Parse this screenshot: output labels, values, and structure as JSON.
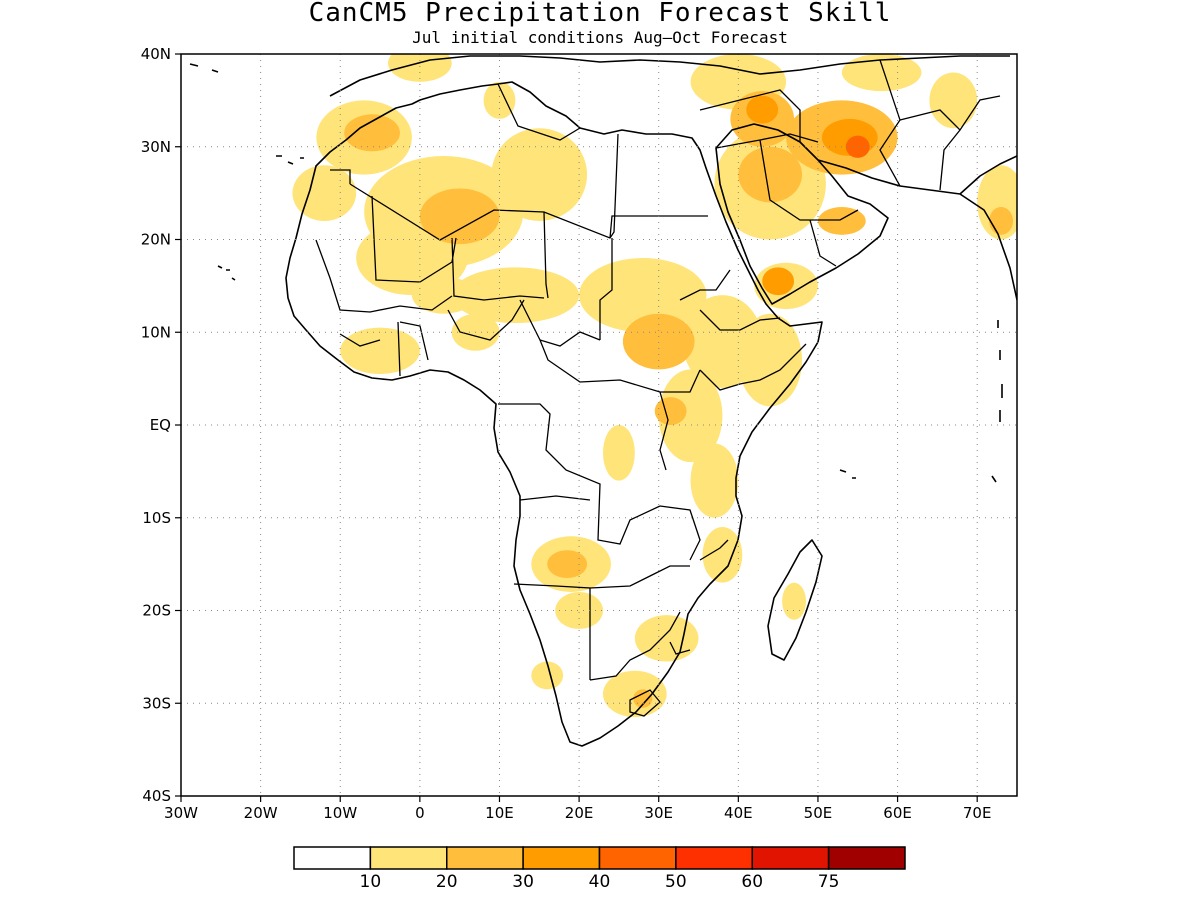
{
  "title": "CanCM5 Precipitation Forecast Skill",
  "subtitle": "Jul initial conditions  Aug–Oct Forecast",
  "map": {
    "lon_range": [
      -30,
      75
    ],
    "lat_range": [
      -40,
      40
    ],
    "lat_ticks": [
      {
        "value": 40,
        "label": "40N"
      },
      {
        "value": 30,
        "label": "30N"
      },
      {
        "value": 20,
        "label": "20N"
      },
      {
        "value": 10,
        "label": "10N"
      },
      {
        "value": 0,
        "label": "EQ"
      },
      {
        "value": -10,
        "label": "10S"
      },
      {
        "value": -20,
        "label": "20S"
      },
      {
        "value": -30,
        "label": "30S"
      },
      {
        "value": -40,
        "label": "40S"
      }
    ],
    "lon_ticks": [
      {
        "value": -30,
        "label": "30W"
      },
      {
        "value": -20,
        "label": "20W"
      },
      {
        "value": -10,
        "label": "10W"
      },
      {
        "value": 0,
        "label": "0"
      },
      {
        "value": 10,
        "label": "10E"
      },
      {
        "value": 20,
        "label": "20E"
      },
      {
        "value": 30,
        "label": "30E"
      },
      {
        "value": 40,
        "label": "40E"
      },
      {
        "value": 50,
        "label": "50E"
      },
      {
        "value": 60,
        "label": "60E"
      },
      {
        "value": 70,
        "label": "70E"
      }
    ],
    "grid": true
  },
  "colorbar": {
    "colors": [
      "#ffffff",
      "#ffe47a",
      "#ffbe3c",
      "#ff9c00",
      "#ff6400",
      "#ff3000",
      "#e01400",
      "#a00000"
    ],
    "labels": [
      "10",
      "20",
      "30",
      "40",
      "50",
      "60",
      "75"
    ]
  },
  "skill_regions": [
    {
      "region": "Morocco / Atlas",
      "level": 1,
      "lon": -7,
      "lat": 31,
      "rx": 6,
      "ry": 4
    },
    {
      "region": "Morocco core",
      "level": 2,
      "lon": -6,
      "lat": 31.5,
      "rx": 3.5,
      "ry": 2
    },
    {
      "region": "Western Sahara",
      "level": 1,
      "lon": -12,
      "lat": 25,
      "rx": 4,
      "ry": 3
    },
    {
      "region": "Algeria central",
      "level": 1,
      "lon": 3,
      "lat": 23,
      "rx": 10,
      "ry": 6
    },
    {
      "region": "Algeria core",
      "level": 2,
      "lon": 5,
      "lat": 22.5,
      "rx": 5,
      "ry": 3
    },
    {
      "region": "Libya / Egypt",
      "level": 1,
      "lon": 15,
      "lat": 27,
      "rx": 6,
      "ry": 5
    },
    {
      "region": "Mali / Niger",
      "level": 1,
      "lon": -1,
      "lat": 18,
      "rx": 7,
      "ry": 4
    },
    {
      "region": "Sahel Chad",
      "level": 1,
      "lon": 12,
      "lat": 14,
      "rx": 8,
      "ry": 3
    },
    {
      "region": "Sahel west",
      "level": 1,
      "lon": 3,
      "lat": 14,
      "rx": 4,
      "ry": 2
    },
    {
      "region": "Sudan",
      "level": 1,
      "lon": 28,
      "lat": 14,
      "rx": 8,
      "ry": 4
    },
    {
      "region": "South Sudan",
      "level": 2,
      "lon": 30,
      "lat": 9,
      "rx": 4.5,
      "ry": 3
    },
    {
      "region": "Ethiopia",
      "level": 1,
      "lon": 38,
      "lat": 9,
      "rx": 5,
      "ry": 5
    },
    {
      "region": "Somalia",
      "level": 1,
      "lon": 44,
      "lat": 7,
      "rx": 4,
      "ry": 5
    },
    {
      "region": "Uganda / Kenya",
      "level": 1,
      "lon": 34,
      "lat": 1,
      "rx": 4,
      "ry": 5
    },
    {
      "region": "Lake Victoria",
      "level": 2,
      "lon": 31.5,
      "lat": 1.5,
      "rx": 2,
      "ry": 1.5
    },
    {
      "region": "Tanzania coast",
      "level": 1,
      "lon": 37,
      "lat": -6,
      "rx": 3,
      "ry": 4
    },
    {
      "region": "Congo east",
      "level": 1,
      "lon": 25,
      "lat": -3,
      "rx": 2,
      "ry": 3
    },
    {
      "region": "Mozambique north",
      "level": 1,
      "lon": 38,
      "lat": -14,
      "rx": 2.5,
      "ry": 3
    },
    {
      "region": "Angola / Zambia",
      "level": 1,
      "lon": 19,
      "lat": -15,
      "rx": 5,
      "ry": 3
    },
    {
      "region": "Angola core",
      "level": 2,
      "lon": 18.5,
      "lat": -15,
      "rx": 2.5,
      "ry": 1.5
    },
    {
      "region": "Botswana",
      "level": 1,
      "lon": 20,
      "lat": -20,
      "rx": 3,
      "ry": 2
    },
    {
      "region": "Zimbabwe / Mozambique",
      "level": 1,
      "lon": 31,
      "lat": -23,
      "rx": 4,
      "ry": 2.5
    },
    {
      "region": "South Africa east",
      "level": 1,
      "lon": 27,
      "lat": -29,
      "rx": 4,
      "ry": 2.5
    },
    {
      "region": "Lesotho",
      "level": 2,
      "lon": 28,
      "lat": -29.5,
      "rx": 1.2,
      "ry": 1
    },
    {
      "region": "Namibia south",
      "level": 1,
      "lon": 16,
      "lat": -27,
      "rx": 2,
      "ry": 1.5
    },
    {
      "region": "Guinea coast",
      "level": 1,
      "lon": -5,
      "lat": 8,
      "rx": 5,
      "ry": 2.5
    },
    {
      "region": "Nigeria",
      "level": 1,
      "lon": 7,
      "lat": 10,
      "rx": 3,
      "ry": 2
    },
    {
      "region": "Madagascar",
      "level": 1,
      "lon": 47,
      "lat": -19,
      "rx": 1.5,
      "ry": 2
    },
    {
      "region": "Arabia north",
      "level": 1,
      "lon": 44,
      "lat": 26,
      "rx": 7,
      "ry": 6
    },
    {
      "region": "Arabia core",
      "level": 2,
      "lon": 44,
      "lat": 27,
      "rx": 4,
      "ry": 3
    },
    {
      "region": "Yemen",
      "level": 1,
      "lon": 46,
      "lat": 15,
      "rx": 4,
      "ry": 2.5
    },
    {
      "region": "Yemen core",
      "level": 3,
      "lon": 45,
      "lat": 15.5,
      "rx": 2,
      "ry": 1.5
    },
    {
      "region": "Iran",
      "level": 2,
      "lon": 53,
      "lat": 31,
      "rx": 7,
      "ry": 4
    },
    {
      "region": "Iran core",
      "level": 3,
      "lon": 54,
      "lat": 31,
      "rx": 3.5,
      "ry": 2
    },
    {
      "region": "Iran peak",
      "level": 4,
      "lon": 55,
      "lat": 30,
      "rx": 1.5,
      "ry": 1.2
    },
    {
      "region": "Iraq",
      "level": 2,
      "lon": 43,
      "lat": 33,
      "rx": 4,
      "ry": 3
    },
    {
      "region": "Iraq core",
      "level": 3,
      "lon": 43,
      "lat": 34,
      "rx": 2,
      "ry": 1.5
    },
    {
      "region": "Turkey / Levant",
      "level": 1,
      "lon": 40,
      "lat": 37,
      "rx": 6,
      "ry": 3
    },
    {
      "region": "Caspian east",
      "level": 1,
      "lon": 58,
      "lat": 38,
      "rx": 5,
      "ry": 2
    },
    {
      "region": "Oman",
      "level": 2,
      "lon": 53,
      "lat": 22,
      "rx": 3,
      "ry": 1.5
    },
    {
      "region": "Pakistan / India",
      "level": 1,
      "lon": 73,
      "lat": 24,
      "rx": 3,
      "ry": 4
    },
    {
      "region": "India core",
      "level": 2,
      "lon": 73,
      "lat": 22,
      "rx": 1.5,
      "ry": 1.5
    },
    {
      "region": "Afghanistan",
      "level": 1,
      "lon": 67,
      "lat": 35,
      "rx": 3,
      "ry": 3
    },
    {
      "region": "Mediterranean north",
      "level": 1,
      "lon": 0,
      "lat": 39,
      "rx": 4,
      "ry": 2
    },
    {
      "region": "Tunisia",
      "level": 1,
      "lon": 10,
      "lat": 35,
      "rx": 2,
      "ry": 2
    }
  ]
}
